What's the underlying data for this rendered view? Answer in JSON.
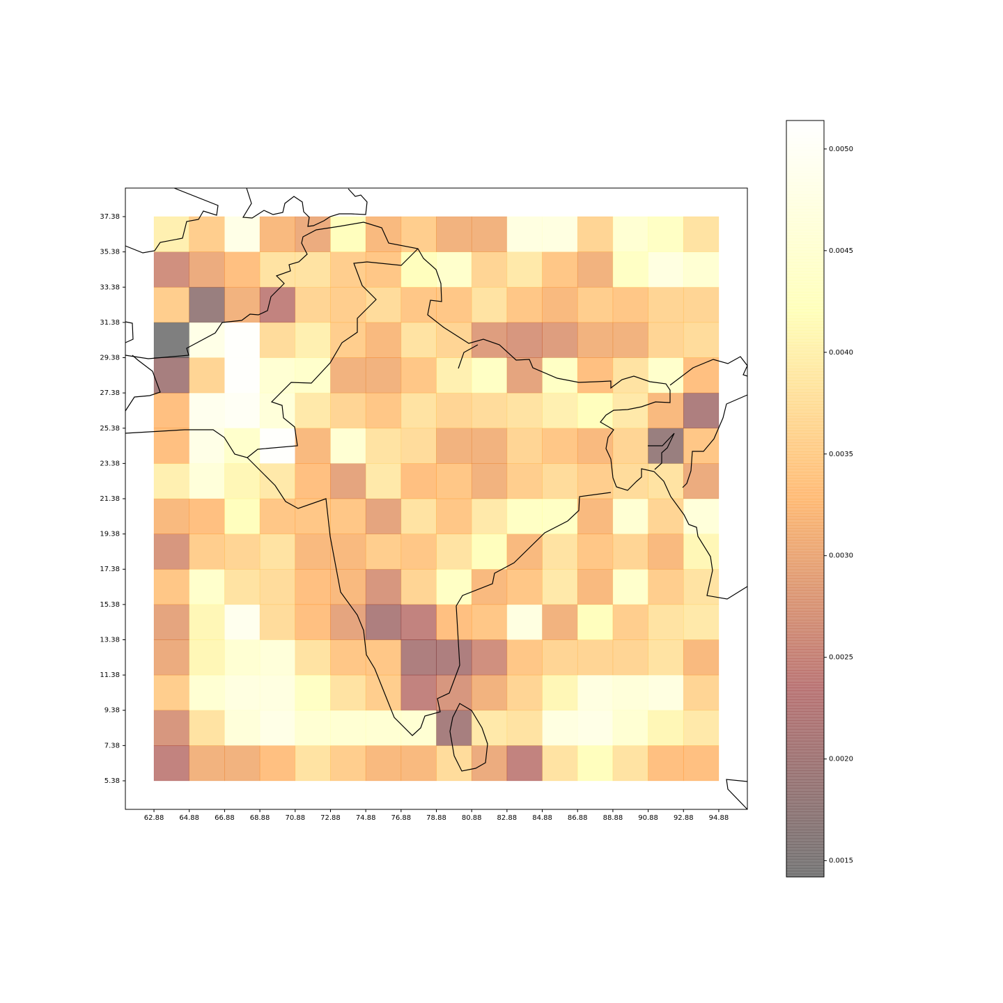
{
  "chart_data": {
    "type": "heatmap",
    "xticks": [
      62.88,
      64.88,
      66.88,
      68.88,
      70.88,
      72.88,
      74.88,
      76.88,
      78.88,
      80.88,
      82.88,
      84.88,
      86.88,
      88.88,
      90.88,
      92.88,
      94.88
    ],
    "yticks": [
      5.38,
      7.38,
      9.38,
      11.38,
      13.38,
      15.38,
      17.38,
      19.38,
      21.38,
      23.38,
      25.38,
      27.38,
      29.38,
      31.38,
      33.38,
      35.38,
      37.38
    ],
    "xlim": [
      61.26,
      96.5
    ],
    "ylim": [
      3.76,
      39.0
    ],
    "values": [
      [
        0.0024,
        0.0031,
        0.0031,
        0.0033,
        0.0038,
        0.0035,
        0.0032,
        0.0032,
        0.0037,
        0.003,
        0.0024,
        0.0038,
        0.0042,
        0.0038,
        0.0033,
        0.0033
      ],
      [
        0.0027,
        0.0038,
        0.0046,
        0.0048,
        0.0045,
        0.0045,
        0.0045,
        0.0045,
        0.002,
        0.0039,
        0.0038,
        0.0047,
        0.0048,
        0.0045,
        0.0041,
        0.0039
      ],
      [
        0.0035,
        0.0045,
        0.0047,
        0.0047,
        0.0043,
        0.0038,
        0.0035,
        0.0024,
        0.0027,
        0.0031,
        0.0036,
        0.0041,
        0.0047,
        0.0046,
        0.0047,
        0.0036
      ],
      [
        0.003,
        0.0041,
        0.0045,
        0.0046,
        0.0038,
        0.0034,
        0.0034,
        0.0021,
        0.0021,
        0.0026,
        0.0034,
        0.0036,
        0.0036,
        0.0036,
        0.0038,
        0.0032
      ],
      [
        0.0029,
        0.0041,
        0.0049,
        0.0037,
        0.0033,
        0.0029,
        0.0021,
        0.0024,
        0.0033,
        0.0034,
        0.0047,
        0.0031,
        0.0042,
        0.0035,
        0.0038,
        0.0039
      ],
      [
        0.0034,
        0.0044,
        0.0038,
        0.0037,
        0.0033,
        0.0032,
        0.0027,
        0.0036,
        0.0043,
        0.0032,
        0.0034,
        0.0039,
        0.0032,
        0.0044,
        0.0035,
        0.0038
      ],
      [
        0.0027,
        0.0035,
        0.0036,
        0.0038,
        0.0032,
        0.0032,
        0.0035,
        0.0034,
        0.0038,
        0.0042,
        0.0032,
        0.0038,
        0.0034,
        0.0036,
        0.0032,
        0.0041
      ],
      [
        0.0032,
        0.0033,
        0.0042,
        0.0034,
        0.0034,
        0.0034,
        0.0029,
        0.0038,
        0.0034,
        0.0039,
        0.0043,
        0.0043,
        0.0032,
        0.0045,
        0.0036,
        0.0046
      ],
      [
        0.004,
        0.0046,
        0.0041,
        0.0039,
        0.0033,
        0.0029,
        0.0039,
        0.0033,
        0.0034,
        0.0031,
        0.0035,
        0.0037,
        0.0035,
        0.0037,
        0.0038,
        0.003
      ],
      [
        0.0033,
        0.0048,
        0.0044,
        0.0051,
        0.0032,
        0.0045,
        0.0038,
        0.0037,
        0.0031,
        0.0031,
        0.0036,
        0.0034,
        0.0032,
        0.0036,
        0.0018,
        0.0034
      ],
      [
        0.0033,
        0.0049,
        0.005,
        0.0046,
        0.0039,
        0.0036,
        0.0034,
        0.0038,
        0.0036,
        0.0037,
        0.0038,
        0.004,
        0.0042,
        0.0039,
        0.0032,
        0.0021
      ],
      [
        0.002,
        0.0036,
        0.0051,
        0.0045,
        0.0044,
        0.0031,
        0.0031,
        0.0034,
        0.004,
        0.0043,
        0.0029,
        0.0043,
        0.0033,
        0.0038,
        0.0044,
        0.0033
      ],
      [
        0.0014,
        0.0048,
        0.0051,
        0.0037,
        0.004,
        0.0035,
        0.0032,
        0.0038,
        0.0036,
        0.0028,
        0.0027,
        0.0028,
        0.0031,
        0.0031,
        0.0036,
        0.0037
      ],
      [
        0.0035,
        0.0018,
        0.0031,
        0.0024,
        0.0036,
        0.0035,
        0.0037,
        0.0034,
        0.0034,
        0.0038,
        0.0034,
        0.0032,
        0.0035,
        0.0034,
        0.0036,
        0.0036
      ],
      [
        0.0026,
        0.003,
        0.0033,
        0.0038,
        0.0038,
        0.0035,
        0.0034,
        0.0042,
        0.0044,
        0.0036,
        0.0039,
        0.0034,
        0.0031,
        0.0043,
        0.0047,
        0.0045
      ],
      [
        0.004,
        0.0035,
        0.0048,
        0.0032,
        0.003,
        0.0042,
        0.0032,
        0.0035,
        0.0031,
        0.0031,
        0.0047,
        0.0047,
        0.0036,
        0.0045,
        0.0043,
        0.0038
      ]
    ],
    "colormap": "afmhot",
    "alpha": 0.5,
    "colorbar": {
      "clim": [
        0.00142,
        0.00514
      ],
      "ticks": [
        0.0015,
        {
          "value": 0.002,
          "label": "0.0020"
        },
        0.0025,
        {
          "value": 0.003,
          "label": "0.0030"
        },
        0.0035,
        {
          "value": 0.004,
          "label": "0.0040"
        },
        0.0045,
        {
          "value": 0.005,
          "label": "0.0050"
        }
      ]
    }
  }
}
